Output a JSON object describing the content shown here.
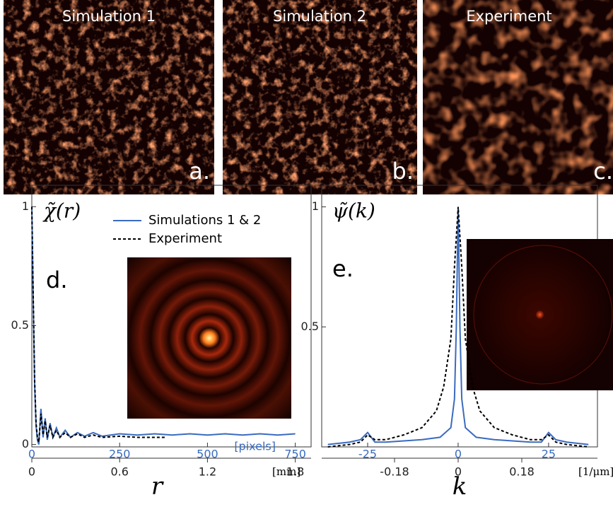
{
  "panels": [
    {
      "title": "Simulation 1",
      "label": "a."
    },
    {
      "title": "Simulation 2",
      "label": "b."
    },
    {
      "title": "Experiment",
      "label": "c."
    }
  ],
  "chart_data": [
    {
      "type": "line",
      "title": "χ̃(r)",
      "label": "d.",
      "xlabel": "r",
      "xunit": "[pixels]",
      "x2unit": "[mm]",
      "xlim": [
        0,
        795
      ],
      "xticks": [
        0,
        250,
        500,
        750
      ],
      "x2lim": [
        0,
        1.908
      ],
      "x2ticks": [
        0,
        0.6,
        1.2,
        1.8
      ],
      "ylim": [
        -0.01,
        1.09
      ],
      "yticks": [
        0,
        0.5,
        1
      ],
      "series": [
        {
          "name": "Simulations 1 & 2",
          "color": "#3a6bbf",
          "style": "solid",
          "x": [
            0,
            4,
            8,
            12,
            16,
            20,
            26,
            32,
            38,
            44,
            52,
            60,
            70,
            80,
            95,
            110,
            130,
            150,
            175,
            200,
            250,
            300,
            350,
            400,
            450,
            500,
            550,
            600,
            650,
            700,
            750
          ],
          "values": [
            1,
            0.6,
            0.25,
            0.08,
            0.02,
            0.0,
            0.15,
            0.03,
            0.11,
            0.02,
            0.09,
            0.03,
            0.07,
            0.03,
            0.06,
            0.03,
            0.05,
            0.035,
            0.05,
            0.035,
            0.045,
            0.04,
            0.045,
            0.04,
            0.045,
            0.04,
            0.045,
            0.04,
            0.045,
            0.04,
            0.045
          ]
        },
        {
          "name": "Experiment",
          "color": "#000000",
          "style": "dashed",
          "x": [
            0,
            4,
            8,
            12,
            16,
            20,
            26,
            32,
            38,
            44,
            52,
            60,
            70,
            80,
            95,
            110,
            130,
            150,
            175,
            200,
            250,
            300,
            350,
            380
          ],
          "values": [
            1,
            0.62,
            0.27,
            0.09,
            0.03,
            0.01,
            0.13,
            0.04,
            0.1,
            0.03,
            0.08,
            0.03,
            0.06,
            0.03,
            0.05,
            0.03,
            0.045,
            0.03,
            0.04,
            0.03,
            0.035,
            0.03,
            0.03,
            0.03
          ]
        }
      ]
    },
    {
      "type": "line",
      "title": "ψ̃(k)",
      "label": "e.",
      "xlabel": "k",
      "x2unit": "[1/μm]",
      "xlim": [
        -37.7,
        38.5
      ],
      "xticks": [
        -25,
        0,
        25
      ],
      "x2lim": [
        -0.386,
        0.394
      ],
      "x2ticks": [
        -0.18,
        0,
        0.18
      ],
      "ylim": [
        0,
        1.09
      ],
      "yticks": [
        0.5,
        1
      ],
      "series": [
        {
          "name": "Simulations 1 & 2",
          "color": "#3a6bbf",
          "style": "solid",
          "x": [
            -36,
            -30,
            -27,
            -25,
            -23,
            -20,
            -10,
            -5,
            -2,
            -1,
            -0.5,
            0,
            0.5,
            1,
            2,
            5,
            10,
            20,
            23,
            25,
            27,
            30,
            36
          ],
          "values": [
            0.01,
            0.02,
            0.03,
            0.06,
            0.02,
            0.02,
            0.03,
            0.04,
            0.08,
            0.2,
            0.5,
            1,
            0.5,
            0.2,
            0.08,
            0.04,
            0.03,
            0.02,
            0.02,
            0.06,
            0.03,
            0.02,
            0.01
          ]
        },
        {
          "name": "Experiment",
          "color": "#000000",
          "style": "dashed",
          "x": [
            -36,
            -30,
            -27,
            -25,
            -23,
            -20,
            -15,
            -10,
            -6,
            -4,
            -2,
            -1,
            0,
            1,
            2,
            4,
            6,
            10,
            15,
            20,
            23,
            25,
            27,
            30,
            36
          ],
          "values": [
            0,
            0.01,
            0.02,
            0.05,
            0.03,
            0.03,
            0.05,
            0.08,
            0.15,
            0.25,
            0.45,
            0.75,
            1,
            0.75,
            0.45,
            0.25,
            0.15,
            0.08,
            0.05,
            0.03,
            0.03,
            0.05,
            0.02,
            0.01,
            0
          ]
        }
      ]
    }
  ]
}
